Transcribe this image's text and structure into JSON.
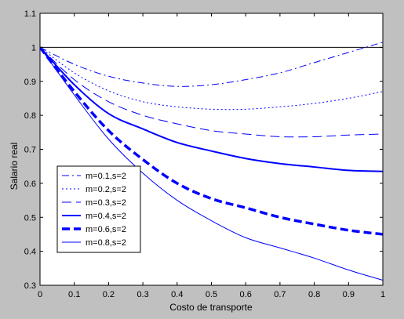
{
  "chart_data": {
    "type": "line",
    "title": "",
    "xlabel": "Costo   de transporte",
    "ylabel": "Salario real",
    "xlim": [
      0,
      1
    ],
    "ylim": [
      0.3,
      1.1
    ],
    "xticks": [
      0,
      0.1,
      0.2,
      0.3,
      0.4,
      0.5,
      0.6,
      0.7,
      0.8,
      0.9,
      1
    ],
    "xtick_labels": [
      "0",
      "0.1",
      "0.2",
      "0.3",
      "0.4",
      "0.5",
      "0.6",
      "0.7",
      "0.8",
      "0.9",
      "1"
    ],
    "yticks": [
      0.3,
      0.4,
      0.5,
      0.6,
      0.7,
      0.8,
      0.9,
      1,
      1.1
    ],
    "ytick_labels": [
      "0.3",
      "0.4",
      "0.5",
      "0.6",
      "0.7",
      "0.8",
      "0.9",
      "1",
      "1.1"
    ],
    "grid": false,
    "legend_position": "lower-left",
    "reference_line": {
      "y": 1,
      "color": "#000000"
    },
    "x": [
      0,
      0.1,
      0.2,
      0.3,
      0.4,
      0.5,
      0.6,
      0.7,
      0.8,
      0.9,
      1
    ],
    "series": [
      {
        "name": "m=0.1,s=2",
        "style": "dashdot",
        "color": "#0000ff",
        "values": [
          1,
          0.95,
          0.915,
          0.895,
          0.885,
          0.89,
          0.905,
          0.925,
          0.955,
          0.985,
          1.015
        ]
      },
      {
        "name": "m=0.2,s=2",
        "style": "dotted",
        "color": "#0000ff",
        "values": [
          1,
          0.925,
          0.872,
          0.84,
          0.825,
          0.818,
          0.818,
          0.825,
          0.835,
          0.85,
          0.87
        ]
      },
      {
        "name": "m=0.3,s=2",
        "style": "dashed",
        "color": "#0000ff",
        "values": [
          1,
          0.905,
          0.84,
          0.8,
          0.775,
          0.755,
          0.745,
          0.737,
          0.737,
          0.742,
          0.745
        ]
      },
      {
        "name": "m=0.4,s=2",
        "style": "solid-thick",
        "color": "#0000ff",
        "values": [
          1,
          0.89,
          0.805,
          0.76,
          0.72,
          0.695,
          0.673,
          0.658,
          0.648,
          0.638,
          0.635
        ]
      },
      {
        "name": "m=0.6,s=2",
        "style": "dashed-thick",
        "color": "#0000ff",
        "values": [
          1,
          0.87,
          0.755,
          0.67,
          0.6,
          0.555,
          0.528,
          0.5,
          0.48,
          0.462,
          0.45
        ]
      },
      {
        "name": "m=0.8,s=2",
        "style": "solid-thin",
        "color": "#0000ff",
        "values": [
          1,
          0.86,
          0.73,
          0.63,
          0.55,
          0.49,
          0.44,
          0.41,
          0.38,
          0.345,
          0.315
        ]
      }
    ]
  }
}
